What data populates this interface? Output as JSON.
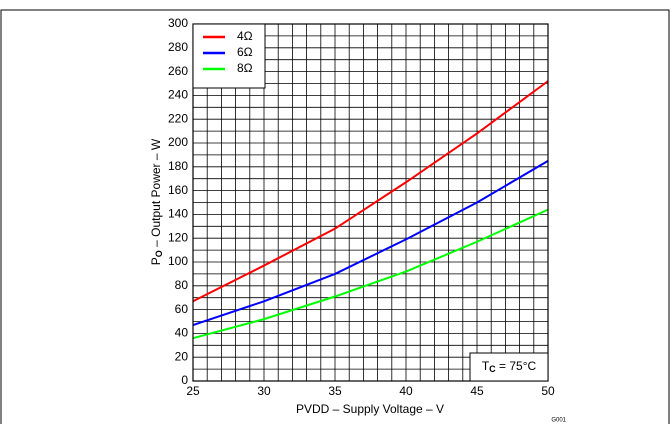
{
  "chart_data": {
    "type": "line",
    "x_label": "PVDD – Supply Voltage – V",
    "y_label": {
      "main": "P",
      "sub": "O",
      "rest": " – Output Power – W"
    },
    "annotation": {
      "main": "T",
      "sub": "C",
      "rest": " = 75°C"
    },
    "figure_id": "G001",
    "x": [
      25,
      30,
      35,
      40,
      45,
      50
    ],
    "series": [
      {
        "name": "4Ω",
        "color": "#ff0000",
        "values": [
          67,
          97,
          128,
          167,
          208,
          252
        ]
      },
      {
        "name": "6Ω",
        "color": "#0000ff",
        "values": [
          47,
          67,
          90,
          119,
          150,
          185
        ]
      },
      {
        "name": "8Ω",
        "color": "#00ff00",
        "values": [
          36,
          52,
          71,
          92,
          117,
          144
        ]
      }
    ],
    "xlim": [
      25,
      50
    ],
    "xticks": [
      25,
      30,
      35,
      40,
      45,
      50
    ],
    "ylim": [
      0,
      300
    ],
    "yticks": [
      0,
      20,
      40,
      60,
      80,
      100,
      120,
      140,
      160,
      180,
      200,
      220,
      240,
      260,
      280,
      300
    ],
    "xgrid": [
      25,
      26,
      27,
      28,
      29,
      30,
      31,
      32,
      33,
      34,
      35,
      36,
      37,
      38,
      39,
      40,
      41,
      42,
      43,
      44,
      45,
      46,
      47,
      48,
      49,
      50
    ],
    "ygrid": [
      0,
      10,
      20,
      30,
      40,
      50,
      60,
      70,
      80,
      90,
      100,
      110,
      120,
      130,
      140,
      150,
      160,
      170,
      180,
      190,
      200,
      210,
      220,
      230,
      240,
      250,
      260,
      270,
      280,
      290,
      300
    ],
    "grid": true,
    "legend": "upper left"
  }
}
